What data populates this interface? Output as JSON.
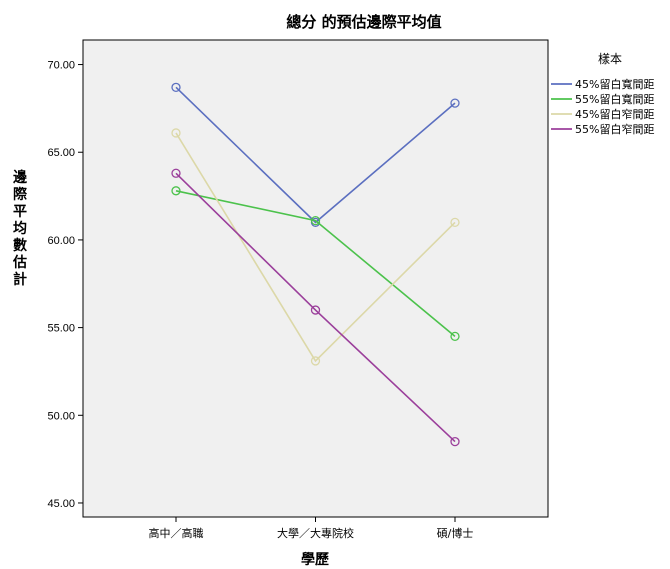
{
  "chart_data": {
    "type": "line",
    "title": "總分 的預估邊際平均值",
    "xlabel": "學歷",
    "ylabel": "邊際平均數估計",
    "categories": [
      "高中／高職",
      "大學／大專院校",
      "碩/博士"
    ],
    "yticks": [
      "45.00",
      "50.00",
      "55.00",
      "60.00",
      "65.00",
      "70.00"
    ],
    "ylim": [
      44.2,
      71.4
    ],
    "legend_title": "樣本",
    "legend_position": "right",
    "grid": false,
    "series": [
      {
        "name": "45%留白寬間距",
        "color": "#5b6fc0",
        "values": [
          68.7,
          61.0,
          67.8
        ]
      },
      {
        "name": "55%留白寬間距",
        "color": "#4cc24c",
        "values": [
          62.8,
          61.1,
          54.5
        ]
      },
      {
        "name": "45%留白窄間距",
        "color": "#dcd8a8",
        "values": [
          66.1,
          53.1,
          61.0
        ]
      },
      {
        "name": "55%留白窄間距",
        "color": "#9b3f9b",
        "values": [
          63.8,
          56.0,
          48.5
        ]
      }
    ]
  }
}
